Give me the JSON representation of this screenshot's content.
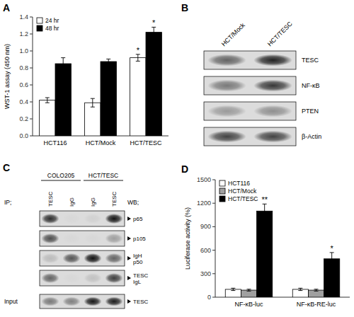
{
  "chart_data": [
    {
      "type": "bar",
      "title": "A",
      "categories": [
        "HCT116",
        "HCT/Mock",
        "HCT/TESC"
      ],
      "series": [
        {
          "name": "24 hr",
          "color": "#ffffff",
          "values": [
            0.42,
            0.39,
            0.92
          ],
          "errors": [
            0.03,
            0.05,
            0.04
          ],
          "stars": [
            null,
            null,
            "*"
          ]
        },
        {
          "name": "48 hr",
          "color": "#000000",
          "values": [
            0.85,
            0.875,
            1.22
          ],
          "errors": [
            0.07,
            0.03,
            0.06
          ],
          "stars": [
            null,
            null,
            "*"
          ]
        }
      ],
      "ylabel": "WST-1 assay (450 nm)",
      "ylim": [
        0,
        1.4
      ],
      "yticks": [
        {
          "value": 0,
          "label": "0.0"
        },
        0.2,
        0.4,
        0.6,
        0.8,
        {
          "value": 1.0,
          "label": "1.0"
        },
        1.2,
        1.4
      ],
      "legend": "upper left",
      "grid": false
    },
    {
      "type": "blot",
      "title": "B",
      "categories": [
        "HCT/Mock",
        "HCT/TESC"
      ],
      "rows": [
        "TESC",
        "NF-κB",
        "PTEN",
        "β-Actin"
      ],
      "cells": [
        [
          0.55,
          0.85
        ],
        [
          0.45,
          0.75
        ],
        [
          0.3,
          0.35
        ],
        [
          0.7,
          0.7
        ]
      ]
    },
    {
      "type": "blot",
      "title": "C",
      "group_labels": [
        "COLO205",
        "HCT/TESC"
      ],
      "categories": [
        "TESC",
        "IgG",
        "IgG",
        "TESC"
      ],
      "ip_label": "IP;",
      "wb_label": "WB;",
      "rows": [
        "p65",
        "p105",
        "IgH\np50",
        "TESC\nIgL"
      ],
      "cells": [
        [
          0.8,
          0.02,
          0.05,
          0.92
        ],
        [
          0.65,
          0.02,
          0.02,
          0.28
        ],
        [
          0.15,
          0.62,
          0.93,
          0.55
        ],
        [
          0.55,
          0.02,
          0.12,
          0.72
        ]
      ],
      "input_label": "Input",
      "input_row": "TESC",
      "input_cells": [
        0.45,
        0.42,
        0.9,
        0.88
      ]
    },
    {
      "type": "bar",
      "title": "D",
      "categories": [
        "NF-κB-luc",
        "NF-κB-RE-luc"
      ],
      "series": [
        {
          "name": "HCT116",
          "color": "#ffffff",
          "values": [
            100,
            100
          ],
          "errors": [
            15,
            15
          ],
          "stars": [
            null,
            null
          ]
        },
        {
          "name": "HCT/Mock",
          "color": "#a0a0a0",
          "values": [
            90,
            90
          ],
          "errors": [
            12,
            12
          ],
          "stars": [
            null,
            null
          ]
        },
        {
          "name": "HCT/TESC",
          "color": "#000000",
          "values": [
            1100,
            490
          ],
          "errors": [
            90,
            80
          ],
          "stars": [
            "**",
            "*"
          ]
        }
      ],
      "ylabel": "Luciferase activity (%)",
      "ylim": [
        0,
        1500
      ],
      "yticks": [
        0,
        300,
        600,
        900,
        1200,
        1500
      ],
      "legend": "upper left",
      "grid": false
    }
  ]
}
